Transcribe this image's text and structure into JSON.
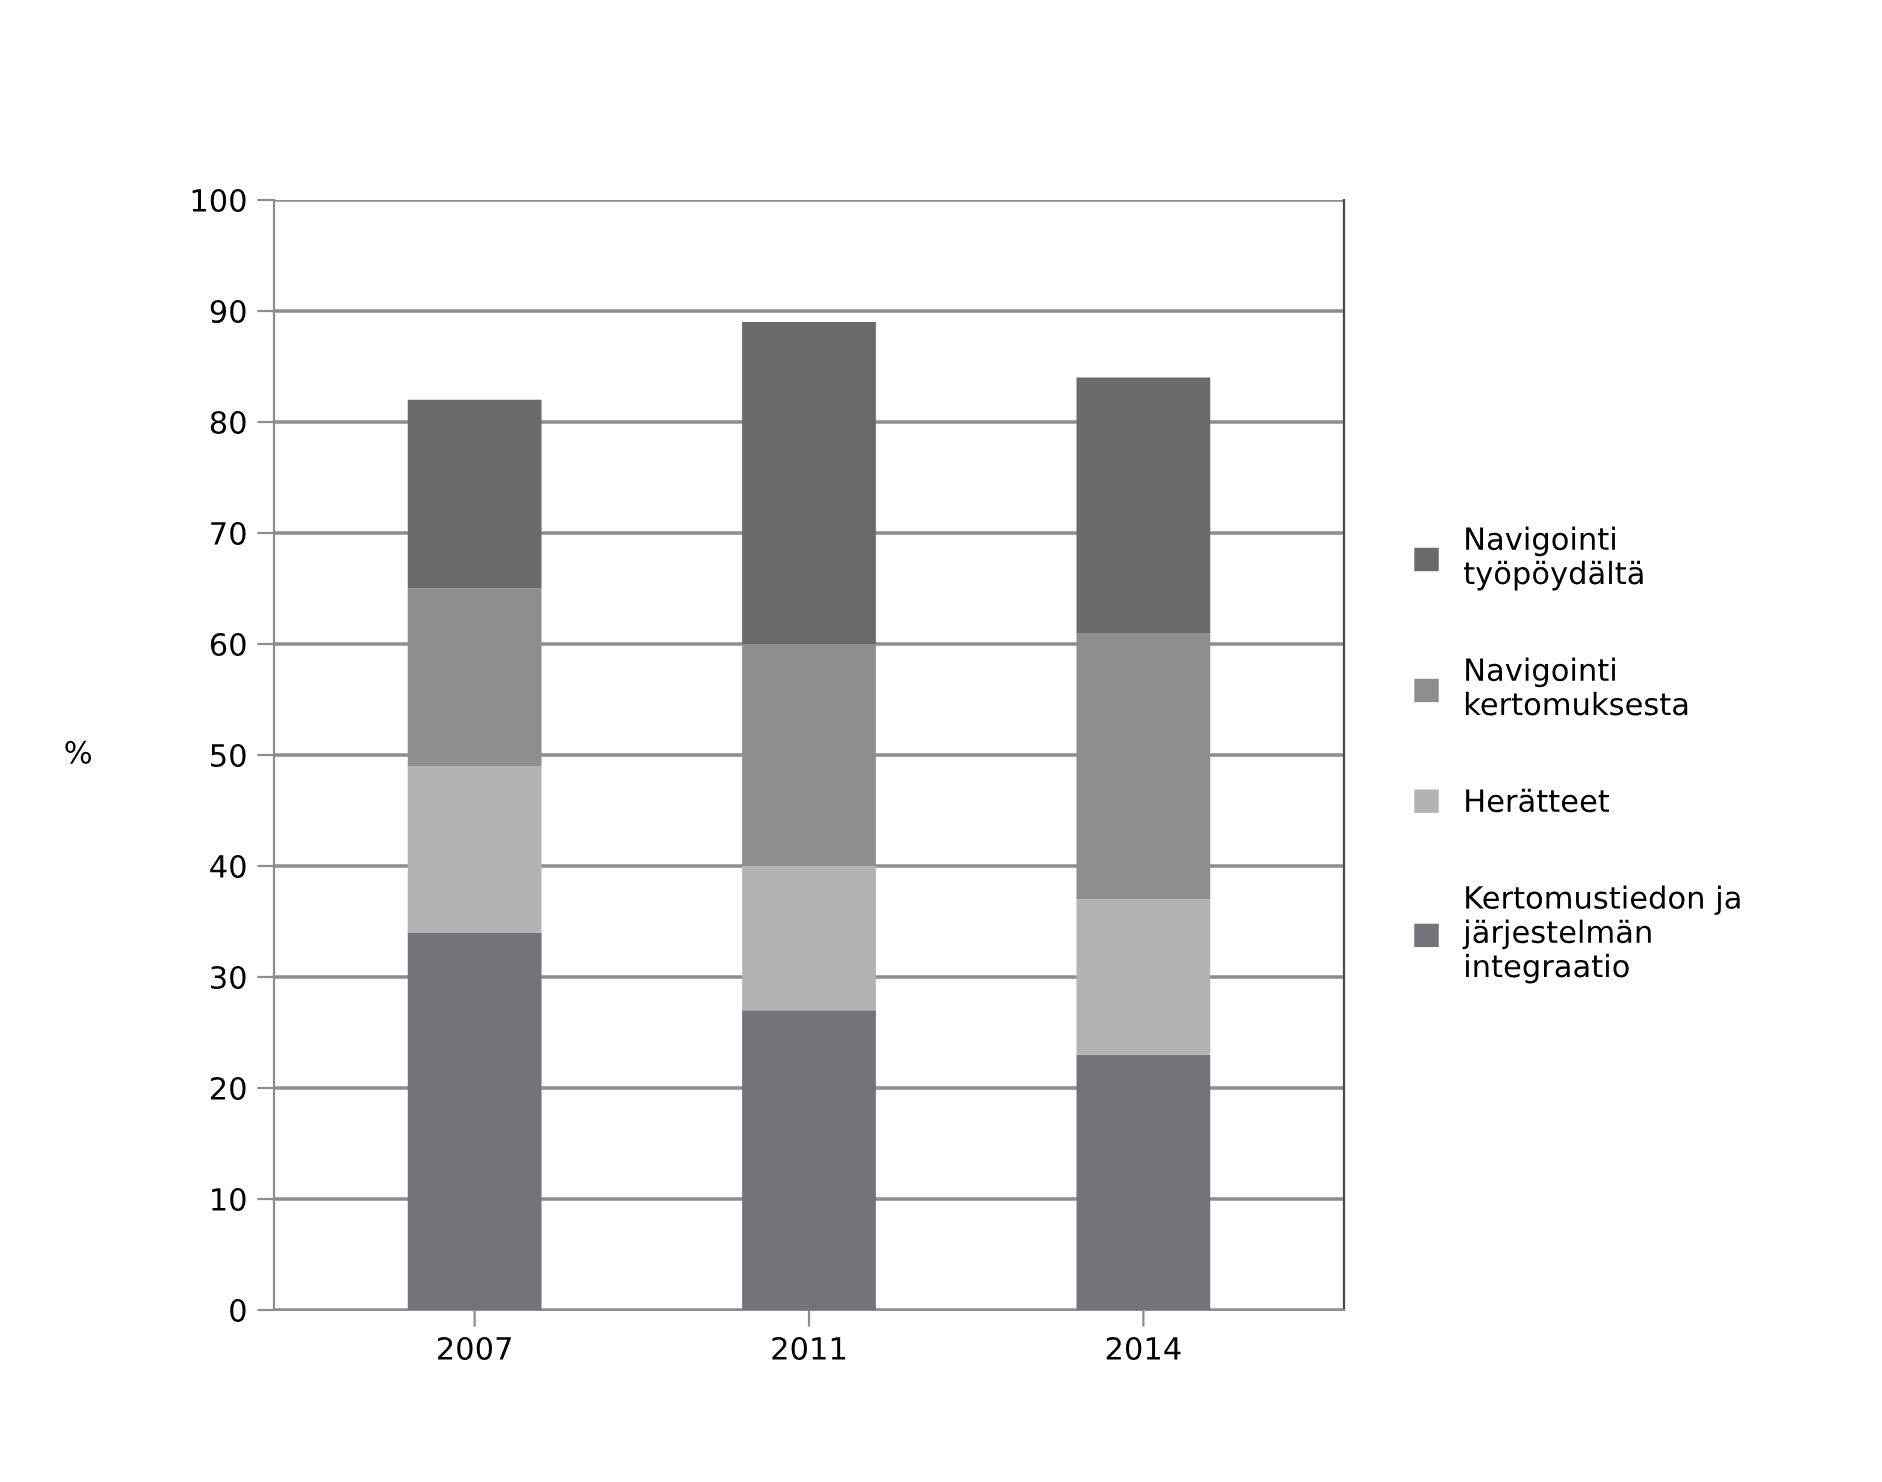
{
  "chart_data": {
    "type": "bar",
    "stacked": true,
    "categories": [
      "2007",
      "2011",
      "2014"
    ],
    "series": [
      {
        "name": "Kertomustiedon ja\njärjestelmän\nintegraatio",
        "color": "#717579",
        "values": [
          34,
          27,
          23
        ]
      },
      {
        "name": "Herätteet",
        "color": "#b1b4b6",
        "values": [
          15,
          13,
          14
        ]
      },
      {
        "name": "Navigointi\nkertomuksesta",
        "color": "#8b8f92",
        "values": [
          16,
          20,
          24
        ]
      },
      {
        "name": "Navigointi\ntyöpöydältä",
        "color": "#676b6d",
        "values": [
          17,
          29,
          23
        ]
      }
    ],
    "ylabel": "%",
    "ylim": [
      0,
      100
    ],
    "yticks": [
      0,
      10,
      20,
      30,
      40,
      50,
      60,
      70,
      80,
      90,
      100
    ],
    "grid": "y",
    "legend": "right"
  }
}
